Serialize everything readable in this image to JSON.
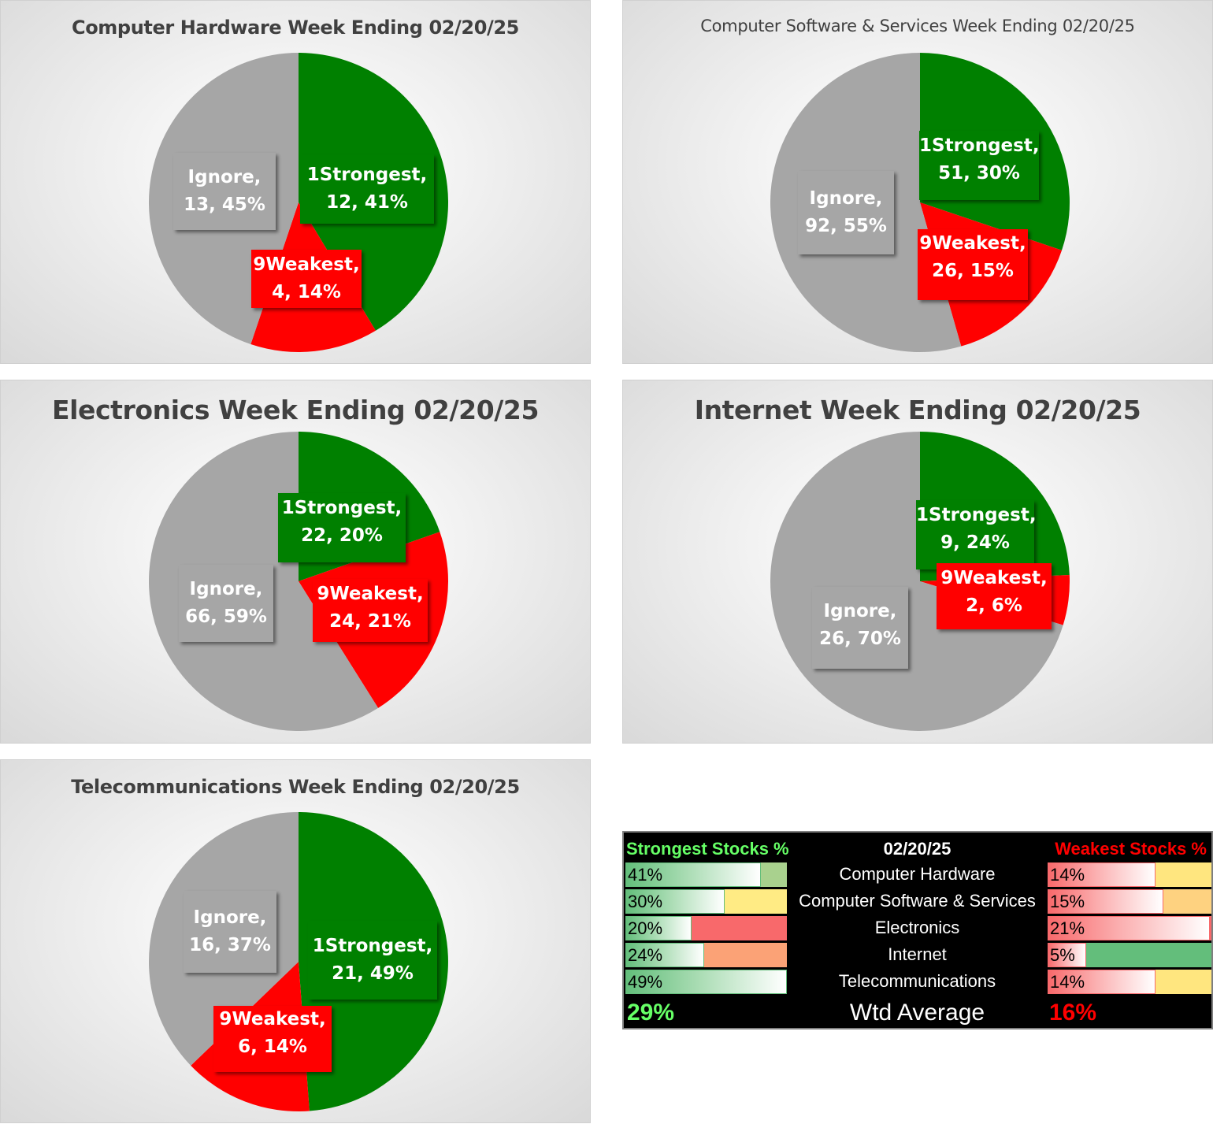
{
  "charts": [
    {
      "title": "Computer Hardware Week Ending 02/20/25",
      "slices": [
        {
          "name": "1Strongest",
          "count": 12,
          "percent": "41%",
          "color": "#008000"
        },
        {
          "name": "9Weakest",
          "count": 4,
          "percent": "14%",
          "color": "#ff0000"
        },
        {
          "name": "Ignore",
          "count": 13,
          "percent": "45%",
          "color": "#a6a6a6"
        }
      ]
    },
    {
      "title": "Computer Software & Services Week Ending 02/20/25",
      "slices": [
        {
          "name": "1Strongest",
          "count": 51,
          "percent": "30%",
          "color": "#008000"
        },
        {
          "name": "9Weakest",
          "count": 26,
          "percent": "15%",
          "color": "#ff0000"
        },
        {
          "name": "Ignore",
          "count": 92,
          "percent": "55%",
          "color": "#a6a6a6"
        }
      ]
    },
    {
      "title": "Electronics Week Ending 02/20/25",
      "slices": [
        {
          "name": "1Strongest",
          "count": 22,
          "percent": "20%",
          "color": "#008000"
        },
        {
          "name": "9Weakest",
          "count": 24,
          "percent": "21%",
          "color": "#ff0000"
        },
        {
          "name": "Ignore",
          "count": 66,
          "percent": "59%",
          "color": "#a6a6a6"
        }
      ]
    },
    {
      "title": "Internet Week Ending 02/20/25",
      "slices": [
        {
          "name": "1Strongest",
          "count": 9,
          "percent": "24%",
          "color": "#008000"
        },
        {
          "name": "9Weakest",
          "count": 2,
          "percent": "6%",
          "color": "#ff0000"
        },
        {
          "name": "Ignore",
          "count": 26,
          "percent": "70%",
          "color": "#a6a6a6"
        }
      ]
    },
    {
      "title": "Telecommunications Week Ending 02/20/25",
      "slices": [
        {
          "name": "1Strongest",
          "count": 21,
          "percent": "49%",
          "color": "#008000"
        },
        {
          "name": "9Weakest",
          "count": 6,
          "percent": "14%",
          "color": "#ff0000"
        },
        {
          "name": "Ignore",
          "count": 16,
          "percent": "37%",
          "color": "#a6a6a6"
        }
      ]
    }
  ],
  "chart_data": [
    {
      "type": "pie",
      "title": "Computer Hardware Week Ending 02/20/25",
      "categories": [
        "1Strongest",
        "9Weakest",
        "Ignore"
      ],
      "values": [
        12,
        4,
        13
      ],
      "percents": [
        41,
        14,
        45
      ]
    },
    {
      "type": "pie",
      "title": "Computer Software & Services Week Ending 02/20/25",
      "categories": [
        "1Strongest",
        "9Weakest",
        "Ignore"
      ],
      "values": [
        51,
        26,
        92
      ],
      "percents": [
        30,
        15,
        55
      ]
    },
    {
      "type": "pie",
      "title": "Electronics Week Ending 02/20/25",
      "categories": [
        "1Strongest",
        "9Weakest",
        "Ignore"
      ],
      "values": [
        22,
        24,
        66
      ],
      "percents": [
        20,
        21,
        59
      ]
    },
    {
      "type": "pie",
      "title": "Internet Week Ending 02/20/25",
      "categories": [
        "1Strongest",
        "9Weakest",
        "Ignore"
      ],
      "values": [
        9,
        2,
        26
      ],
      "percents": [
        24,
        6,
        70
      ]
    },
    {
      "type": "pie",
      "title": "Telecommunications Week Ending 02/20/25",
      "categories": [
        "1Strongest",
        "9Weakest",
        "Ignore"
      ],
      "values": [
        21,
        6,
        16
      ],
      "percents": [
        49,
        14,
        37
      ]
    },
    {
      "type": "table",
      "columns": [
        "Strongest Stocks %",
        "02/20/25",
        "Weakest Stocks %"
      ],
      "rows": [
        {
          "sector": "Computer Hardware",
          "strongest": "41%",
          "weakest": "14%",
          "strongest_value": 41,
          "weakest_value": 14,
          "strongest_fill": "#a9d18e",
          "weakest_fill": "#ffe67f"
        },
        {
          "sector": "Computer Software & Services",
          "strongest": "30%",
          "weakest": "15%",
          "strongest_value": 30,
          "weakest_value": 15,
          "strongest_fill": "#ffeb84",
          "weakest_fill": "#fed280"
        },
        {
          "sector": "Electronics",
          "strongest": "20%",
          "weakest": "21%",
          "strongest_value": 20,
          "weakest_value": 21,
          "strongest_fill": "#f8696b",
          "weakest_fill": "#f8696b"
        },
        {
          "sector": "Internet",
          "strongest": "24%",
          "weakest": "5%",
          "strongest_value": 24,
          "weakest_value": 5,
          "strongest_fill": "#fba276",
          "weakest_fill": "#63be7b"
        },
        {
          "sector": "Telecommunications",
          "strongest": "49%",
          "weakest": "14%",
          "strongest_value": 49,
          "weakest_value": 14,
          "strongest_fill": "#63be7b",
          "weakest_fill": "#ffe67f"
        }
      ],
      "average_label": "Wtd Average",
      "strongest_average": "29%",
      "weakest_average": "16%"
    }
  ],
  "summary": {
    "strongest_header": "Strongest Stocks %",
    "date_header": "02/20/25",
    "weakest_header": "Weakest Stocks %",
    "strongest_header_color": "#66ff66",
    "weakest_header_color": "#ff0000",
    "average_label": "Wtd Average",
    "strongest_average": "29%",
    "weakest_average": "16%"
  }
}
